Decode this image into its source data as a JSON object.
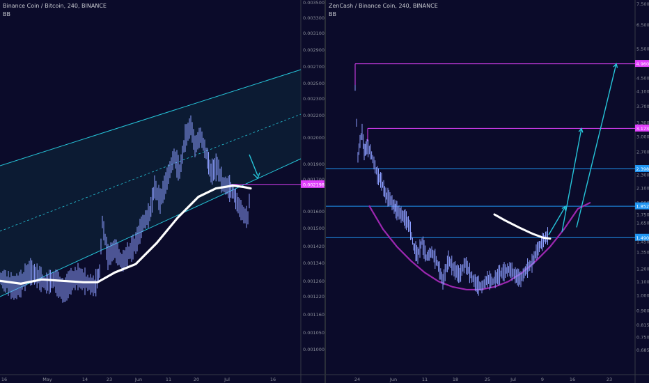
{
  "chart_data": [
    {
      "type": "candlestick",
      "title": "Binance Coin / Bitcoin, 240, BINANCE",
      "indicator": "BB",
      "y_scale": "linear",
      "ylim": [
        0.00093,
        0.0035
      ],
      "y_ticks": [
        "0.0035000",
        "0.0033000",
        "0.0031000",
        "0.0029000",
        "0.0027000",
        "0.0025000",
        "0.0023000",
        "0.0022000",
        "0.0020000",
        "0.0019000",
        "0.0017000",
        "0.0016000",
        "0.0015000",
        "0.0014200",
        "0.0013400",
        "0.0012600",
        "0.0012200",
        "0.0011600",
        "0.0010500",
        "0.0010000"
      ],
      "x_ticks": [
        "16",
        "May",
        "14",
        "23",
        "Jun",
        "11",
        "20",
        "Jul",
        "16"
      ],
      "price_label": "0.0021982",
      "price_color": "#e040fb",
      "channel_color": "#26c6da",
      "candle_color": "#8c9eff",
      "ma_color": "#ffffff",
      "arrow_color": "#26c6da",
      "price_series": [
        {
          "x": 0,
          "y": 0.00153
        },
        {
          "x": 10,
          "y": 0.0015
        },
        {
          "x": 20,
          "y": 0.00146
        },
        {
          "x": 30,
          "y": 0.00149
        },
        {
          "x": 42,
          "y": 0.00158
        },
        {
          "x": 55,
          "y": 0.00154
        },
        {
          "x": 65,
          "y": 0.00149
        },
        {
          "x": 78,
          "y": 0.00152
        },
        {
          "x": 92,
          "y": 0.00143
        },
        {
          "x": 100,
          "y": 0.0015
        },
        {
          "x": 112,
          "y": 0.00154
        },
        {
          "x": 124,
          "y": 0.0015
        },
        {
          "x": 136,
          "y": 0.00147
        },
        {
          "x": 143,
          "y": 0.00158
        },
        {
          "x": 147,
          "y": 0.00193
        },
        {
          "x": 155,
          "y": 0.00168
        },
        {
          "x": 165,
          "y": 0.00174
        },
        {
          "x": 175,
          "y": 0.00164
        },
        {
          "x": 185,
          "y": 0.00171
        },
        {
          "x": 195,
          "y": 0.00178
        },
        {
          "x": 205,
          "y": 0.00192
        },
        {
          "x": 215,
          "y": 0.00199
        },
        {
          "x": 222,
          "y": 0.00218
        },
        {
          "x": 230,
          "y": 0.00208
        },
        {
          "x": 240,
          "y": 0.00224
        },
        {
          "x": 250,
          "y": 0.0024
        },
        {
          "x": 258,
          "y": 0.00229
        },
        {
          "x": 266,
          "y": 0.00253
        },
        {
          "x": 274,
          "y": 0.00262
        },
        {
          "x": 280,
          "y": 0.00247
        },
        {
          "x": 288,
          "y": 0.00255
        },
        {
          "x": 296,
          "y": 0.00242
        },
        {
          "x": 303,
          "y": 0.00228
        },
        {
          "x": 312,
          "y": 0.00233
        },
        {
          "x": 320,
          "y": 0.0022
        },
        {
          "x": 328,
          "y": 0.00218
        },
        {
          "x": 335,
          "y": 0.00214
        },
        {
          "x": 342,
          "y": 0.00205
        },
        {
          "x": 350,
          "y": 0.00198
        },
        {
          "x": 356,
          "y": 0.00196
        },
        {
          "x": 360,
          "y": 0.0022
        }
      ],
      "ma_series": [
        {
          "x": 0,
          "y": 0.00151
        },
        {
          "x": 30,
          "y": 0.00149
        },
        {
          "x": 60,
          "y": 0.00152
        },
        {
          "x": 90,
          "y": 0.00151
        },
        {
          "x": 120,
          "y": 0.0015
        },
        {
          "x": 140,
          "y": 0.0015
        },
        {
          "x": 165,
          "y": 0.00157
        },
        {
          "x": 195,
          "y": 0.00163
        },
        {
          "x": 225,
          "y": 0.00178
        },
        {
          "x": 255,
          "y": 0.00196
        },
        {
          "x": 285,
          "y": 0.00211
        },
        {
          "x": 310,
          "y": 0.00217
        },
        {
          "x": 335,
          "y": 0.00219
        },
        {
          "x": 350,
          "y": 0.00218
        },
        {
          "x": 360,
          "y": 0.00217
        }
      ]
    },
    {
      "type": "candlestick",
      "title": "ZenCash / Binance Coin, 240, BINANCE",
      "indicator": "BB",
      "y_scale": "log",
      "ylim": [
        0.63,
        7.6
      ],
      "y_ticks": [
        "7.500",
        "6.500",
        "5.500",
        "4.960",
        "4.500",
        "4.100",
        "3.700",
        "3.300",
        "3.173",
        "3.000",
        "2.700",
        "2.398",
        "2.300",
        "2.100",
        "1.900",
        "1.852",
        "1.750",
        "1.650",
        "1.490",
        "1.450",
        "1.350",
        "1.200",
        "1.100",
        "1.000",
        "0.900",
        "0.815",
        "0.750",
        "0.685"
      ],
      "x_ticks": [
        "24",
        "Jun",
        "11",
        "18",
        "25",
        "Jul",
        "9",
        "16",
        "23"
      ],
      "levels": [
        {
          "label": "4.960",
          "value": 4.96,
          "color": "#e040fb"
        },
        {
          "label": "3.173",
          "value": 3.173,
          "color": "#e040fb"
        },
        {
          "label": "2.398",
          "value": 2.398,
          "color": "#2196f3"
        },
        {
          "label": "1.852",
          "value": 1.852,
          "color": "#2196f3"
        },
        {
          "label": "1.490",
          "value": 1.49,
          "color": "#2196f3"
        }
      ],
      "candle_color": "#8c9eff",
      "curve_color": "#9c27b0",
      "ma_color": "#ffffff",
      "arrow_color": "#26c6da",
      "price_series": [
        {
          "x": 0,
          "y": 4.2
        },
        {
          "x": 2,
          "y": 3.3
        },
        {
          "x": 4,
          "y": 2.6
        },
        {
          "x": 7,
          "y": 2.9
        },
        {
          "x": 10,
          "y": 3.1
        },
        {
          "x": 13,
          "y": 2.7
        },
        {
          "x": 17,
          "y": 2.8
        },
        {
          "x": 22,
          "y": 2.7
        },
        {
          "x": 27,
          "y": 2.5
        },
        {
          "x": 32,
          "y": 2.3
        },
        {
          "x": 38,
          "y": 2.2
        },
        {
          "x": 44,
          "y": 2.0
        },
        {
          "x": 50,
          "y": 1.95
        },
        {
          "x": 56,
          "y": 1.85
        },
        {
          "x": 60,
          "y": 1.8
        },
        {
          "x": 66,
          "y": 1.75
        },
        {
          "x": 72,
          "y": 1.7
        },
        {
          "x": 78,
          "y": 1.62
        },
        {
          "x": 84,
          "y": 1.4
        },
        {
          "x": 90,
          "y": 1.32
        },
        {
          "x": 96,
          "y": 1.45
        },
        {
          "x": 102,
          "y": 1.3
        },
        {
          "x": 110,
          "y": 1.35
        },
        {
          "x": 118,
          "y": 1.25
        },
        {
          "x": 126,
          "y": 1.1
        },
        {
          "x": 134,
          "y": 1.28
        },
        {
          "x": 142,
          "y": 1.2
        },
        {
          "x": 150,
          "y": 1.15
        },
        {
          "x": 158,
          "y": 1.25
        },
        {
          "x": 166,
          "y": 1.15
        },
        {
          "x": 174,
          "y": 1.08
        },
        {
          "x": 182,
          "y": 1.06
        },
        {
          "x": 190,
          "y": 1.12
        },
        {
          "x": 198,
          "y": 1.1
        },
        {
          "x": 206,
          "y": 1.15
        },
        {
          "x": 214,
          "y": 1.18
        },
        {
          "x": 222,
          "y": 1.2
        },
        {
          "x": 230,
          "y": 1.15
        },
        {
          "x": 238,
          "y": 1.12
        },
        {
          "x": 246,
          "y": 1.2
        },
        {
          "x": 254,
          "y": 1.25
        },
        {
          "x": 260,
          "y": 1.35
        },
        {
          "x": 266,
          "y": 1.42
        },
        {
          "x": 272,
          "y": 1.48
        },
        {
          "x": 278,
          "y": 1.52
        }
      ],
      "ma_series": [
        {
          "x": 200,
          "y": 1.75
        },
        {
          "x": 215,
          "y": 1.68
        },
        {
          "x": 235,
          "y": 1.6
        },
        {
          "x": 255,
          "y": 1.53
        },
        {
          "x": 270,
          "y": 1.49
        },
        {
          "x": 280,
          "y": 1.48
        }
      ],
      "bowl_series": [
        {
          "x": 20,
          "y": 1.86
        },
        {
          "x": 40,
          "y": 1.58
        },
        {
          "x": 60,
          "y": 1.4
        },
        {
          "x": 80,
          "y": 1.27
        },
        {
          "x": 100,
          "y": 1.17
        },
        {
          "x": 120,
          "y": 1.1
        },
        {
          "x": 140,
          "y": 1.06
        },
        {
          "x": 160,
          "y": 1.04
        },
        {
          "x": 180,
          "y": 1.04
        },
        {
          "x": 200,
          "y": 1.06
        },
        {
          "x": 220,
          "y": 1.1
        },
        {
          "x": 240,
          "y": 1.17
        },
        {
          "x": 260,
          "y": 1.27
        },
        {
          "x": 280,
          "y": 1.4
        },
        {
          "x": 300,
          "y": 1.58
        },
        {
          "x": 320,
          "y": 1.82
        },
        {
          "x": 338,
          "y": 1.9
        }
      ],
      "arrows": [
        {
          "from": {
            "x": 278,
            "y": 1.52
          },
          "to": {
            "x": 302,
            "y": 1.85
          }
        },
        {
          "from": {
            "x": 297,
            "y": 1.55
          },
          "to": {
            "x": 325,
            "y": 3.17
          }
        },
        {
          "from": {
            "x": 318,
            "y": 1.6
          },
          "to": {
            "x": 375,
            "y": 4.96
          }
        }
      ]
    }
  ]
}
